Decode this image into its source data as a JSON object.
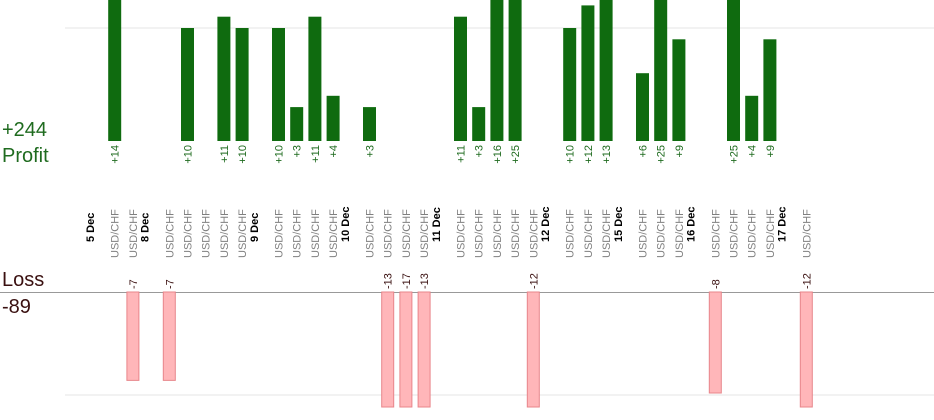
{
  "summary": {
    "profit_total": "+244",
    "profit_label": "Profit",
    "loss_label": "Loss",
    "loss_total": "-89"
  },
  "colors": {
    "profit_bar": "#0f6b0f",
    "profit_text": "#1f6b1f",
    "loss_bar": "#ffb6b9",
    "loss_bar_stroke": "#e8858a",
    "loss_text": "#3a1010",
    "date_text": "#000000",
    "pair_text": "#808080",
    "grid": "#e4e4e4",
    "axis": "#999999"
  },
  "chart_data": {
    "type": "bar",
    "title": "",
    "xlabel": "",
    "ylabel": "",
    "grid": true,
    "categories": [
      {
        "date": "5 Dec",
        "trades": [
          {
            "pair": "USD/CHF",
            "profit": 14,
            "label": "+14"
          },
          {
            "pair": "USD/CHF",
            "loss": -7,
            "label": "-7"
          }
        ]
      },
      {
        "date": "8 Dec",
        "trades": [
          {
            "pair": "USD/CHF",
            "loss": -7,
            "label": "-7"
          },
          {
            "pair": "USD/CHF",
            "profit": 10,
            "label": "+10"
          },
          {
            "pair": "USD/CHF"
          },
          {
            "pair": "USD/CHF",
            "profit": 11,
            "label": "+11"
          },
          {
            "pair": "USD/CHF",
            "profit": 10,
            "label": "+10"
          }
        ]
      },
      {
        "date": "9 Dec",
        "trades": [
          {
            "pair": "USD/CHF",
            "profit": 10,
            "label": "+10"
          },
          {
            "pair": "USD/CHF",
            "profit": 3,
            "label": "+3"
          },
          {
            "pair": "USD/CHF",
            "profit": 11,
            "label": "+11"
          },
          {
            "pair": "USD/CHF",
            "profit": 4,
            "label": "+4"
          }
        ]
      },
      {
        "date": "10 Dec",
        "trades": [
          {
            "pair": "USD/CHF",
            "profit": 3,
            "label": "+3"
          },
          {
            "pair": "USD/CHF",
            "loss": -13,
            "label": "-13"
          },
          {
            "pair": "USD/CHF",
            "loss": -17,
            "label": "-17"
          },
          {
            "pair": "USD/CHF",
            "loss": -13,
            "label": "-13"
          }
        ]
      },
      {
        "date": "11 Dec",
        "trades": [
          {
            "pair": "USD/CHF",
            "profit": 11,
            "label": "+11"
          },
          {
            "pair": "USD/CHF",
            "profit": 3,
            "label": "+3"
          },
          {
            "pair": "USD/CHF",
            "profit": 16,
            "label": "+16"
          },
          {
            "pair": "USD/CHF",
            "profit": 25,
            "label": "+25"
          },
          {
            "pair": "USD/CHF",
            "loss": -12,
            "label": "-12"
          }
        ]
      },
      {
        "date": "12 Dec",
        "trades": [
          {
            "pair": "USD/CHF",
            "profit": 10,
            "label": "+10"
          },
          {
            "pair": "USD/CHF",
            "profit": 12,
            "label": "+12"
          },
          {
            "pair": "USD/CHF",
            "profit": 13,
            "label": "+13"
          }
        ]
      },
      {
        "date": "15 Dec",
        "trades": [
          {
            "pair": "USD/CHF",
            "profit": 6,
            "label": "+6"
          },
          {
            "pair": "USD/CHF",
            "profit": 25,
            "label": "+25"
          },
          {
            "pair": "USD/CHF",
            "profit": 9,
            "label": "+9"
          }
        ]
      },
      {
        "date": "16 Dec",
        "trades": [
          {
            "pair": "USD/CHF",
            "loss": -8,
            "label": "-8"
          },
          {
            "pair": "USD/CHF",
            "profit": 25,
            "label": "+25"
          },
          {
            "pair": "USD/CHF",
            "profit": 4,
            "label": "+4"
          },
          {
            "pair": "USD/CHF",
            "profit": 9,
            "label": "+9"
          }
        ]
      },
      {
        "date": "17 Dec",
        "trades": [
          {
            "pair": "USD/CHF",
            "loss": -12,
            "label": "-12"
          }
        ]
      }
    ]
  }
}
